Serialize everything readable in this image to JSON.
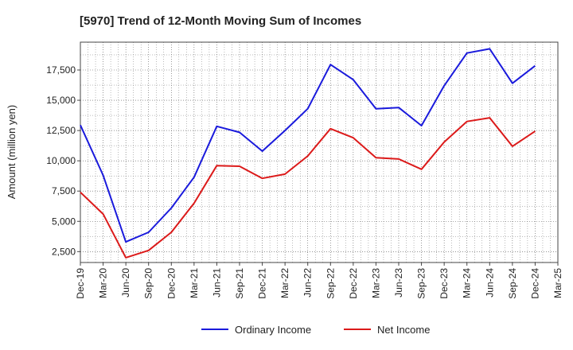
{
  "chart_data": {
    "type": "line",
    "title": "[5970]  Trend of 12-Month Moving Sum of Incomes",
    "xlabel": "",
    "ylabel": "Amount (million yen)",
    "ylim": [
      1600,
      19800
    ],
    "yticks": [
      2500,
      5000,
      7500,
      10000,
      12500,
      15000,
      17500
    ],
    "ytick_labels": [
      "2,500",
      "5,000",
      "7,500",
      "10,000",
      "12,500",
      "15,000",
      "17,500"
    ],
    "grid": true,
    "legend_position": "bottom-center",
    "categories": [
      "Dec-19",
      "Mar-20",
      "Jun-20",
      "Sep-20",
      "Dec-20",
      "Mar-21",
      "Jun-21",
      "Sep-21",
      "Dec-21",
      "Mar-22",
      "Jun-22",
      "Sep-22",
      "Dec-22",
      "Mar-23",
      "Jun-23",
      "Sep-23",
      "Dec-23",
      "Mar-24",
      "Jun-24",
      "Sep-24",
      "Dec-24",
      "Mar-25"
    ],
    "series": [
      {
        "name": "Ordinary Income",
        "color": "#1a1adc",
        "values": [
          12950,
          8800,
          3300,
          4100,
          6100,
          8650,
          12850,
          12350,
          10800,
          12500,
          14300,
          17950,
          16700,
          14300,
          14400,
          12900,
          16200,
          18900,
          19250,
          16400,
          17850,
          null
        ]
      },
      {
        "name": "Net Income",
        "color": "#dc1a1a",
        "values": [
          7400,
          5600,
          2000,
          2600,
          4100,
          6500,
          9600,
          9550,
          8550,
          8900,
          10400,
          12650,
          11900,
          10250,
          10150,
          9300,
          11550,
          13250,
          13550,
          11200,
          12450,
          null
        ]
      }
    ]
  }
}
